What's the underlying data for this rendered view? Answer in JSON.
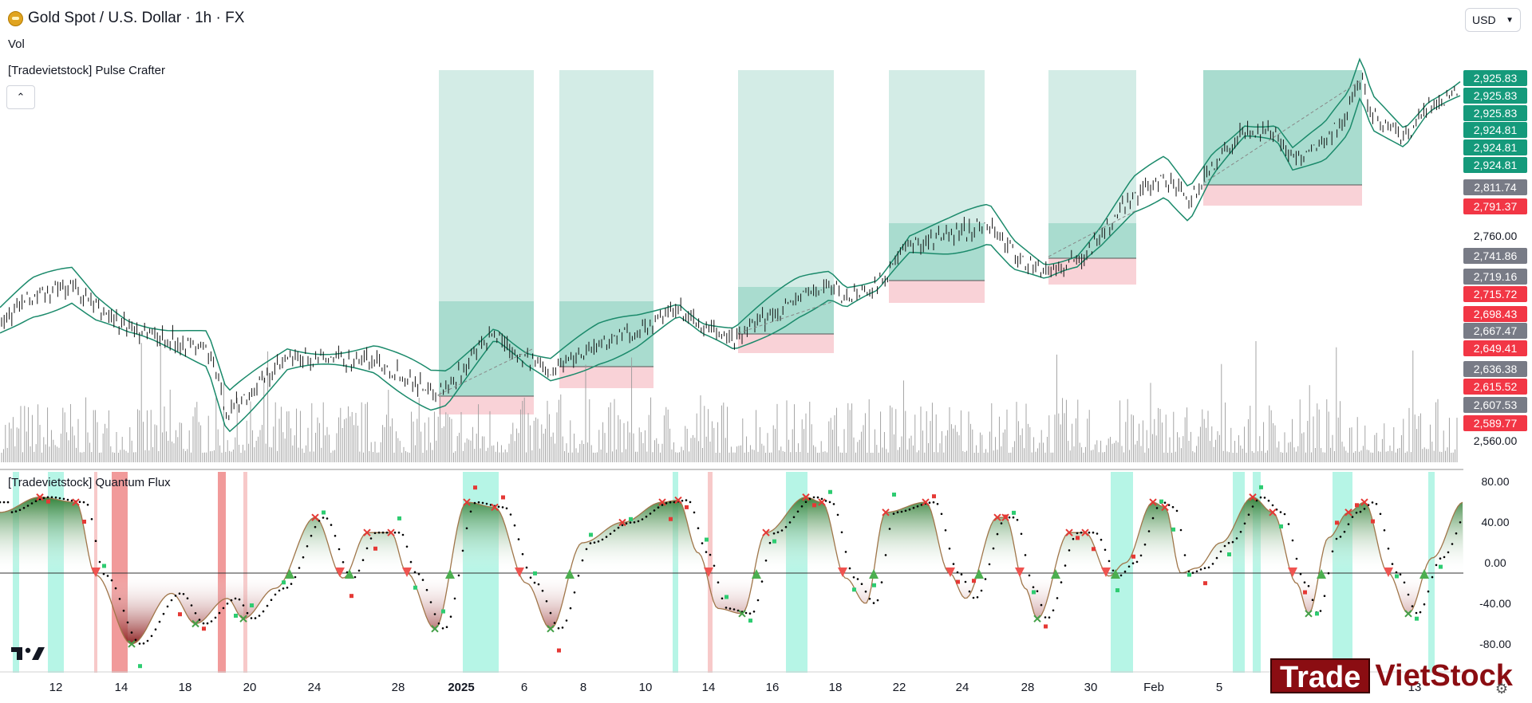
{
  "header": {
    "title": "Gold Spot / U.S. Dollar · 1h · FX",
    "vol_label": "Vol",
    "indicator1": "[Tradevietstock] Pulse Crafter",
    "currency": "USD",
    "collapse_icon": "chevron-up-icon"
  },
  "price_axis": {
    "labels": [
      {
        "text": "2,925.83",
        "color": "#159a7b"
      },
      {
        "text": "2,925.83",
        "color": "#159a7b"
      },
      {
        "text": "2,925.83",
        "color": "#159a7b"
      },
      {
        "text": "2,924.81",
        "color": "#159a7b"
      },
      {
        "text": "2,924.81",
        "color": "#159a7b"
      },
      {
        "text": "2,924.81",
        "color": "#159a7b"
      },
      {
        "text": "2,811.74",
        "color": "#787b86"
      },
      {
        "text": "2,791.37",
        "color": "#f23645"
      },
      {
        "text": "2,760.00",
        "color": ""
      },
      {
        "text": "2,741.86",
        "color": "#787b86"
      },
      {
        "text": "2,719.16",
        "color": "#787b86"
      },
      {
        "text": "2,715.72",
        "color": "#f23645"
      },
      {
        "text": "2,698.43",
        "color": "#f23645"
      },
      {
        "text": "2,667.47",
        "color": "#787b86"
      },
      {
        "text": "2,649.41",
        "color": "#f23645"
      },
      {
        "text": "2,636.38",
        "color": "#787b86"
      },
      {
        "text": "2,615.52",
        "color": "#f23645"
      },
      {
        "text": "2,607.53",
        "color": "#787b86"
      },
      {
        "text": "2,589.77",
        "color": "#f23645"
      },
      {
        "text": "2,560.00",
        "color": ""
      }
    ]
  },
  "oscillator": {
    "title": "[Tradevietstock] Quantum Flux",
    "axis": [
      "80.00",
      "40.00",
      "0.00",
      "-40.00",
      "-80.00"
    ]
  },
  "time_axis": {
    "labels": [
      {
        "text": "12",
        "bold": false
      },
      {
        "text": "14",
        "bold": false
      },
      {
        "text": "18",
        "bold": false
      },
      {
        "text": "20",
        "bold": false
      },
      {
        "text": "24",
        "bold": false
      },
      {
        "text": "28",
        "bold": false
      },
      {
        "text": "2025",
        "bold": true
      },
      {
        "text": "6",
        "bold": false
      },
      {
        "text": "8",
        "bold": false
      },
      {
        "text": "10",
        "bold": false
      },
      {
        "text": "14",
        "bold": false
      },
      {
        "text": "16",
        "bold": false
      },
      {
        "text": "18",
        "bold": false
      },
      {
        "text": "22",
        "bold": false
      },
      {
        "text": "24",
        "bold": false
      },
      {
        "text": "28",
        "bold": false
      },
      {
        "text": "30",
        "bold": false
      },
      {
        "text": "Feb",
        "bold": false
      },
      {
        "text": "5",
        "bold": false
      },
      {
        "text": "13",
        "bold": false
      }
    ]
  },
  "brand": {
    "trade": "Trade",
    "viet": "VietStock"
  },
  "colors": {
    "green_zone": "#b9e3d6",
    "red_zone": "#f7c9ce",
    "band": "#1b8a6b",
    "up": "#26a69a",
    "down": "#ef5350"
  }
}
